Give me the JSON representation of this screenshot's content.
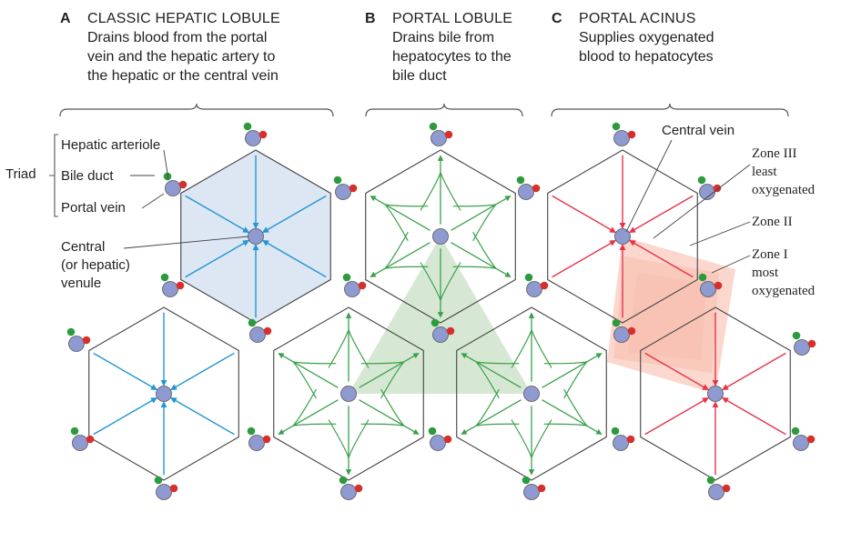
{
  "panels": [
    {
      "letter": "A",
      "title": "CLASSIC HEPATIC LOBULE",
      "description": "Drains blood from the portal\nvein and the hepatic artery to\nthe hepatic or the central vein"
    },
    {
      "letter": "B",
      "title": "PORTAL LOBULE",
      "description": "Drains bile from\nhepatocytes to the\nbile duct"
    },
    {
      "letter": "C",
      "title": "PORTAL ACINUS",
      "description": "Supplies oxygenated\nblood to hepatocytes"
    }
  ],
  "labels": {
    "triad": "Triad",
    "hepatic_arteriole": "Hepatic arteriole",
    "bile_duct": "Bile duct",
    "portal_vein": "Portal vein",
    "central_venule": "Central\n(or hepatic)\nvenule",
    "central_vein": "Central vein",
    "zone3": "Zone III\nleast\noxygenated",
    "zone2": "Zone II",
    "zone1": "Zone I\nmost\noxygenated"
  },
  "colors": {
    "blood_flow": "#2196d3",
    "bile_flow": "#3aa04a",
    "acinus_flow": "#e8344a",
    "lobule_fill": "#dde6f3",
    "portal_lobule_fill": "#c8e0c4",
    "acinus_fill": "#f7b7a6",
    "vein": "#8e9ad0",
    "bile_duct": "#2e9a3e",
    "arteriole": "#d7302c"
  }
}
